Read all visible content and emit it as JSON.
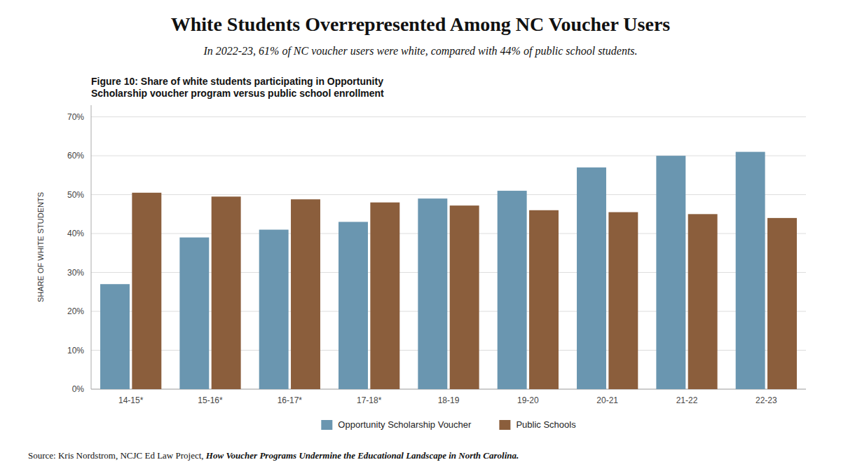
{
  "chart_data": {
    "type": "bar",
    "title": "White Students Overrepresented Among NC Voucher Users",
    "subtitle": "In 2022-23, 61% of NC voucher users were white, compared with 44% of public school students.",
    "figure_title": "Figure 10: Share of white students participating in Opportunity\nScholarship voucher program versus public school enrollment",
    "ylabel": "SHARE OF WHITE STUDENTS",
    "categories": [
      "14-15*",
      "15-16*",
      "16-17*",
      "17-18*",
      "18-19",
      "19-20",
      "20-21",
      "21-22",
      "22-23"
    ],
    "series": [
      {
        "name": "Opportunity Scholarship Voucher",
        "color": "#6a96b0",
        "values": [
          0.27,
          0.39,
          0.41,
          0.43,
          0.49,
          0.51,
          0.57,
          0.6,
          0.61
        ]
      },
      {
        "name": "Public Schools",
        "color": "#8B5E3C",
        "values": [
          0.505,
          0.495,
          0.488,
          0.48,
          0.472,
          0.46,
          0.455,
          0.45,
          0.44
        ]
      }
    ],
    "ylim": [
      0,
      0.73
    ],
    "yticks": [
      {
        "value": 0.0,
        "label": "0%"
      },
      {
        "value": 0.1,
        "label": "10%"
      },
      {
        "value": 0.2,
        "label": "20%"
      },
      {
        "value": 0.3,
        "label": "30%"
      },
      {
        "value": 0.4,
        "label": "40%"
      },
      {
        "value": 0.5,
        "label": "50%"
      },
      {
        "value": 0.6,
        "label": "60%"
      },
      {
        "value": 0.7,
        "label": "70%"
      }
    ],
    "grid": true,
    "legend": "bottom",
    "source": [
      "Source: Kris Nordstrom, NCJC Ed Law Project, ",
      "How Voucher Programs Undermine the Educational Landscape in North Carolina."
    ]
  }
}
